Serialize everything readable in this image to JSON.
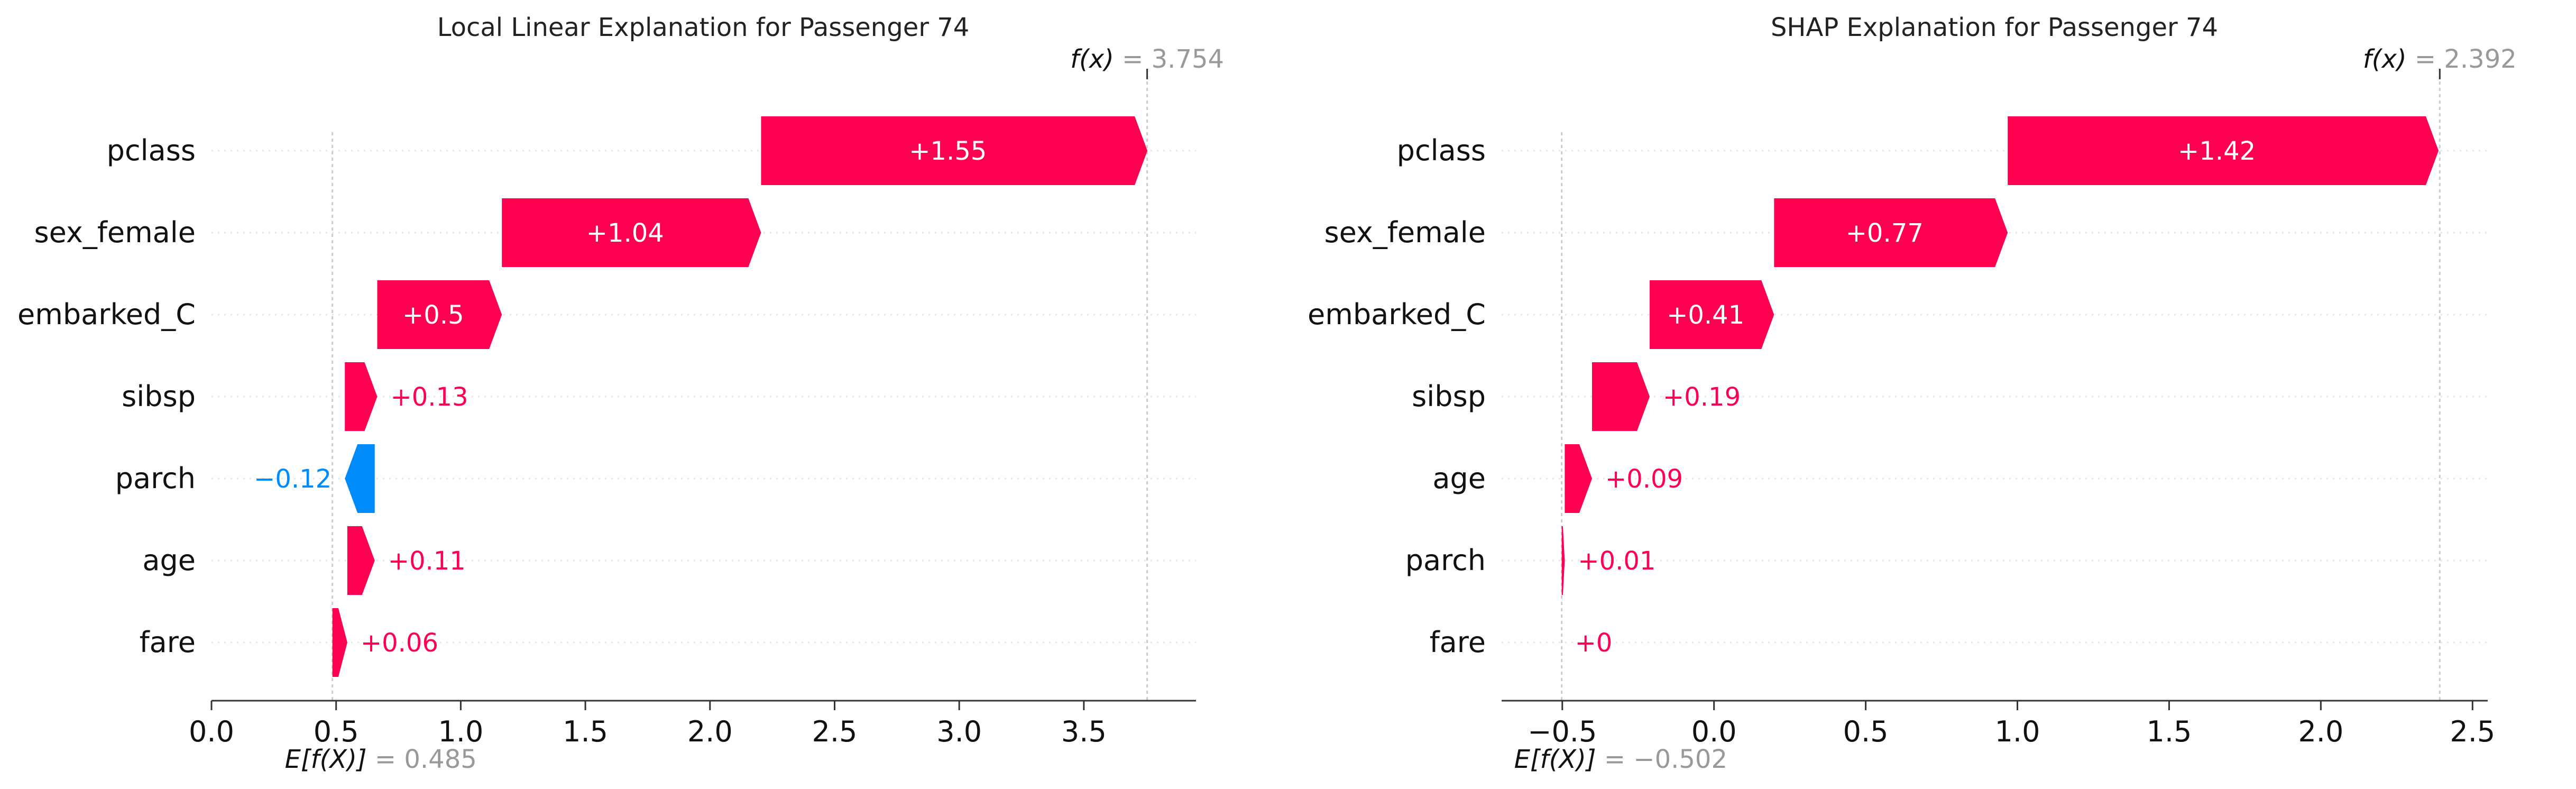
{
  "colors": {
    "positive": "#ff0051",
    "negative": "#008bfb",
    "axis": "#333333",
    "annotation": "#999999",
    "gridline": "#cccccc"
  },
  "chart_data": [
    {
      "type": "waterfall",
      "title": "Local Linear Explanation for Passenger 74",
      "base_value_label": "E[f(X)]",
      "base_value": 0.485,
      "base_value_text": "0.485",
      "output_label": "f(x)",
      "output_value": 3.754,
      "output_value_text": "3.754",
      "xlim": [
        0.0,
        3.95
      ],
      "xticks": [
        0.0,
        0.5,
        1.0,
        1.5,
        2.0,
        2.5,
        3.0,
        3.5
      ],
      "xtick_labels": [
        "0.0",
        "0.5",
        "1.0",
        "1.5",
        "2.0",
        "2.5",
        "3.0",
        "3.5"
      ],
      "features": [
        {
          "name": "pclass",
          "value": 1.55,
          "label": "+1.55"
        },
        {
          "name": "sex_female",
          "value": 1.04,
          "label": "+1.04"
        },
        {
          "name": "embarked_C",
          "value": 0.5,
          "label": "+0.5"
        },
        {
          "name": "sibsp",
          "value": 0.13,
          "label": "+0.13"
        },
        {
          "name": "parch",
          "value": -0.12,
          "label": "−0.12"
        },
        {
          "name": "age",
          "value": 0.11,
          "label": "+0.11"
        },
        {
          "name": "fare",
          "value": 0.06,
          "label": "+0.06"
        }
      ]
    },
    {
      "type": "waterfall",
      "title": "SHAP Explanation for Passenger 74",
      "base_value_label": "E[f(X)]",
      "base_value": -0.502,
      "base_value_text": "−0.502",
      "output_label": "f(x)",
      "output_value": 2.392,
      "output_value_text": "2.392",
      "xlim": [
        -0.7,
        2.55
      ],
      "xticks": [
        -0.5,
        0.0,
        0.5,
        1.0,
        1.5,
        2.0,
        2.5
      ],
      "xtick_labels": [
        "−0.5",
        "0.0",
        "0.5",
        "1.0",
        "1.5",
        "2.0",
        "2.5"
      ],
      "features": [
        {
          "name": "pclass",
          "value": 1.42,
          "label": "+1.42"
        },
        {
          "name": "sex_female",
          "value": 0.77,
          "label": "+0.77"
        },
        {
          "name": "embarked_C",
          "value": 0.41,
          "label": "+0.41"
        },
        {
          "name": "sibsp",
          "value": 0.19,
          "label": "+0.19"
        },
        {
          "name": "age",
          "value": 0.09,
          "label": "+0.09"
        },
        {
          "name": "parch",
          "value": 0.01,
          "label": "+0.01"
        },
        {
          "name": "fare",
          "value": 0.0,
          "label": "+0"
        }
      ]
    }
  ]
}
